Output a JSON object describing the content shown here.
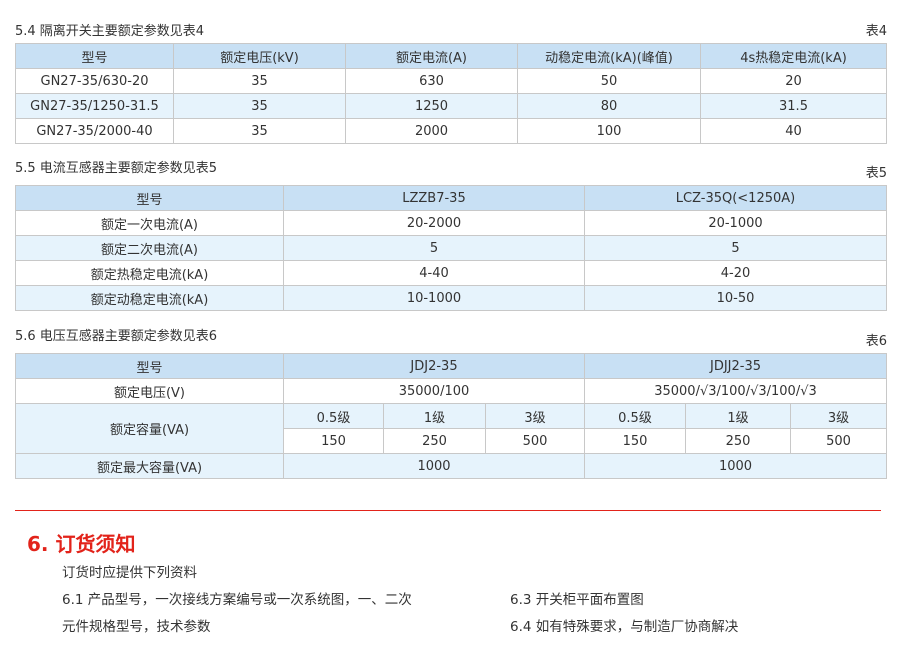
{
  "t4": {
    "title": "5.4 隔离开关主要额定参数见表4",
    "no": "表4",
    "headers": [
      "型号",
      "额定电压(kV)",
      "额定电流(A)",
      "动稳定电流(kA)(峰值)",
      "4s热稳定电流(kA)"
    ],
    "rows": [
      [
        "GN27-35/630-20",
        "35",
        "630",
        "50",
        "20"
      ],
      [
        "GN27-35/1250-31.5",
        "35",
        "1250",
        "80",
        "31.5"
      ],
      [
        "GN27-35/2000-40",
        "35",
        "2000",
        "100",
        "40"
      ]
    ]
  },
  "t5": {
    "title": "5.5 电流互感器主要额定参数见表5",
    "no": "表5",
    "headers": [
      "型号",
      "LZZB7-35",
      "LCZ-35Q(<1250A)"
    ],
    "rows": [
      [
        "额定一次电流(A)",
        "20-2000",
        "20-1000"
      ],
      [
        "额定二次电流(A)",
        "5",
        "5"
      ],
      [
        "额定热稳定电流(kA)",
        "4-40",
        "4-20"
      ],
      [
        "额定动稳定电流(kA)",
        "10-1000",
        "10-50"
      ]
    ]
  },
  "t6": {
    "title": "5.6 电压互感器主要额定参数见表6",
    "no": "表6",
    "headers": [
      "型号",
      "JDJ2-35",
      "JDJJ2-35"
    ],
    "voltage": [
      "额定电压(V)",
      "35000/100",
      "35000/√3/100/√3/100/√3"
    ],
    "capacity_label": "额定容量(VA)",
    "classes": [
      "0.5级",
      "1级",
      "3级",
      "0.5级",
      "1级",
      "3级"
    ],
    "capacities": [
      "150",
      "250",
      "500",
      "150",
      "250",
      "500"
    ],
    "max": [
      "额定最大容量(VA)",
      "1000",
      "1000"
    ]
  },
  "order": {
    "heading": "6. 订货须知",
    "intro": "订货时应提供下列资料",
    "items": [
      "6.1  产品型号，一次接线方案编号或一次系统图，一、二次",
      "元件规格型号，技术参数",
      "6.3 开关柜平面布置图",
      "6.4 如有特殊要求，与制造厂协商解决"
    ]
  },
  "colors": {
    "accent": "#e2231a",
    "header": "#c8e0f4",
    "alt_row": "#e6f3fc"
  }
}
